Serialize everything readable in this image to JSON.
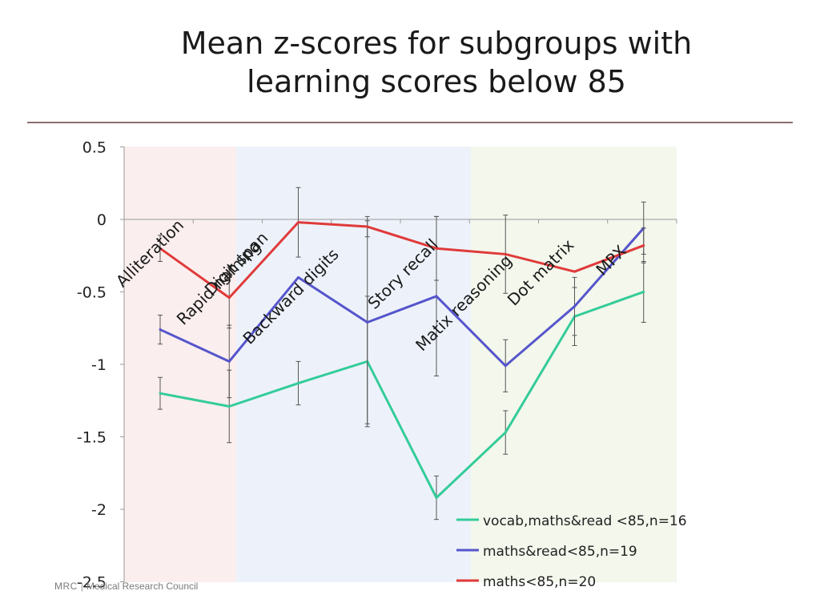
{
  "slide": {
    "title_line1": "Mean z-scores for subgroups with",
    "title_line2": "learning scores below 85"
  },
  "footer": {
    "abbr": "MRC",
    "separator": "|",
    "org": "Medical Research Council"
  },
  "colors": {
    "series": [
      "#33cc99",
      "#5555cc",
      "#e03a3a"
    ],
    "band_pink": "#fbeeee",
    "band_blue": "#edf2fa",
    "band_green": "#f3f7ec",
    "errorbar": "#555555",
    "axis": "#9a9a9a"
  },
  "chart_data": {
    "type": "line",
    "title": "",
    "xlabel": "",
    "ylabel": "",
    "categories": [
      "Alliteration",
      "Rapid naming",
      "Digit span",
      "Backward digits",
      "Story recall",
      "Matix reasoning",
      "Dot matrix",
      "MPX"
    ],
    "ylim": [
      -2.5,
      0.5
    ],
    "y_ticks": [
      "0.5",
      "0",
      "-0.5",
      "-1",
      "-1.5",
      "-2",
      "-2.5"
    ],
    "y_tick_values": [
      0.5,
      0,
      -0.5,
      -1,
      -1.5,
      -2,
      -2.5
    ],
    "grid": false,
    "legend_position": "bottom-right",
    "background_bands": [
      {
        "from_category": 0,
        "to_category": 1,
        "color": "pink"
      },
      {
        "from_category": 1,
        "to_category": 5,
        "color": "blue"
      },
      {
        "from_category": 5,
        "to_category": 8,
        "color": "green"
      }
    ],
    "series": [
      {
        "name": "vocab,maths&read <85,n=16",
        "values": [
          -1.2,
          -1.29,
          -1.13,
          -0.98,
          -1.92,
          -1.47,
          -0.67,
          -0.5
        ],
        "error": [
          0.11,
          0.25,
          0.15,
          0.45,
          0.15,
          0.15,
          0.2,
          0.21
        ]
      },
      {
        "name": "maths&read<85,n=19",
        "values": [
          -0.76,
          -0.98,
          -0.4,
          -0.71,
          -0.53,
          -1.01,
          -0.6,
          -0.06
        ],
        "error": [
          0.1,
          0.25,
          0.0,
          0.7,
          0.55,
          0.18,
          0.2,
          0.18
        ]
      },
      {
        "name": "maths<85,n=20",
        "values": [
          -0.2,
          -0.54,
          -0.02,
          -0.05,
          -0.2,
          -0.24,
          -0.36,
          -0.18
        ],
        "error": [
          0.09,
          0.21,
          0.24,
          0.07,
          0.22,
          0.27,
          0.0,
          0.12
        ]
      }
    ]
  }
}
